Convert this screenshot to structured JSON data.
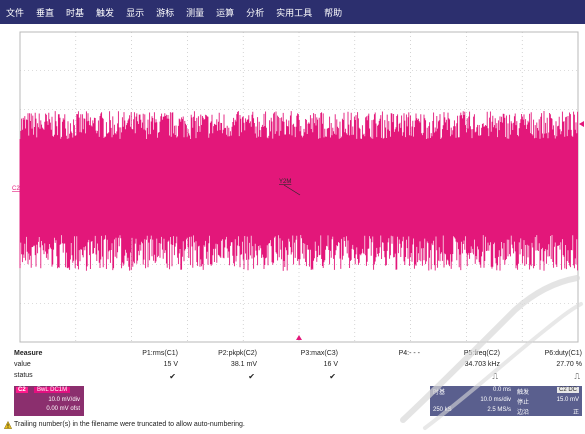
{
  "menu": [
    "文件",
    "垂直",
    "时基",
    "触发",
    "显示",
    "游标",
    "测量",
    "运算",
    "分析",
    "实用工具",
    "帮助"
  ],
  "scope": {
    "grid_color": "#b8b8b8",
    "signal_color": "#e3177a",
    "channel_marker": "C2",
    "cursor_label": "Y2M"
  },
  "measure": {
    "header": "Measure",
    "row_labels": [
      "value",
      "status"
    ],
    "params": [
      {
        "name": "P1:rms(C1)",
        "value": "15 V",
        "status": "✔"
      },
      {
        "name": "P2:pkpk(C2)",
        "value": "38.1 mV",
        "status": "✔"
      },
      {
        "name": "P3:max(C3)",
        "value": "16 V",
        "status": "✔"
      },
      {
        "name": "P4:- - -",
        "value": "",
        "status": ""
      },
      {
        "name": "P5:freq(C2)",
        "value": "34.703 kHz",
        "status": "⎍"
      },
      {
        "name": "P6:duty(C1)",
        "value": "27.70 %",
        "status": "⎍"
      }
    ]
  },
  "channel": {
    "label": "C2",
    "mode": "BwL DC1M",
    "scale": "10.0 mV/div",
    "offset": "0.00 mV ofst"
  },
  "timebase": {
    "title": "时基",
    "delay": "0.0 ms",
    "scale": "10.0 ms/div",
    "samples": "250 kS",
    "rate": "2.5 MS/s"
  },
  "trigger": {
    "title": "触发",
    "badge": "C2 DC",
    "mode": "停止",
    "level": "15.0 mV",
    "type": "边沿",
    "slope": "正"
  },
  "status_message": "Trailing number(s) in the filename were truncated to allow auto-numbering."
}
